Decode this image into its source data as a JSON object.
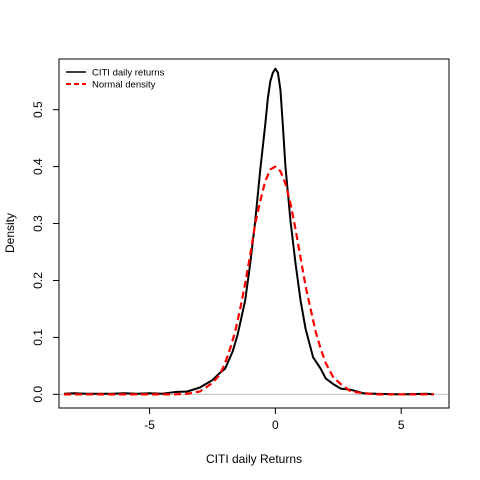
{
  "chart_data": {
    "type": "line",
    "title": "",
    "xlabel": "CITI daily Returns",
    "ylabel": "Density",
    "xlim": [
      -8.6,
      6.9
    ],
    "ylim": [
      -0.024,
      0.589
    ],
    "x_ticks": [
      -5,
      0,
      5
    ],
    "x_tick_labels": [
      "-5",
      "0",
      "5"
    ],
    "y_ticks": [
      0.0,
      0.1,
      0.2,
      0.3,
      0.4,
      0.5
    ],
    "y_tick_labels": [
      "0.0",
      "0.1",
      "0.2",
      "0.3",
      "0.4",
      "0.5"
    ],
    "grid": false,
    "legend_position": "top-left",
    "baseline": {
      "y": 0,
      "color": "#bebebe"
    },
    "series": [
      {
        "name": "CITI daily returns",
        "color": "#000000",
        "dash": "solid",
        "x": [
          -8.4,
          -8.0,
          -7.5,
          -7.0,
          -6.5,
          -6.0,
          -5.5,
          -5.0,
          -4.5,
          -4.0,
          -3.5,
          -3.0,
          -2.5,
          -2.2,
          -2.0,
          -1.7,
          -1.5,
          -1.2,
          -1.0,
          -0.8,
          -0.6,
          -0.4,
          -0.3,
          -0.2,
          -0.1,
          0.0,
          0.1,
          0.2,
          0.3,
          0.4,
          0.6,
          0.8,
          1.0,
          1.2,
          1.5,
          1.8,
          2.0,
          2.3,
          2.6,
          3.0,
          3.5,
          4.0,
          5.0,
          6.0,
          6.3
        ],
        "y": [
          0.001,
          0.002,
          0.001,
          0.001,
          0.001,
          0.002,
          0.001,
          0.002,
          0.001,
          0.004,
          0.005,
          0.012,
          0.025,
          0.038,
          0.045,
          0.075,
          0.105,
          0.165,
          0.23,
          0.305,
          0.395,
          0.475,
          0.52,
          0.55,
          0.565,
          0.572,
          0.565,
          0.535,
          0.47,
          0.4,
          0.305,
          0.23,
          0.165,
          0.115,
          0.065,
          0.045,
          0.028,
          0.018,
          0.01,
          0.008,
          0.002,
          0.001,
          0.0,
          0.001,
          0.0
        ]
      },
      {
        "name": "Normal density",
        "color": "#ff0000",
        "dash": "dashed",
        "x": [
          -8.4,
          -7.5,
          -6.5,
          -5.5,
          -5.0,
          -4.5,
          -4.0,
          -3.5,
          -3.0,
          -2.5,
          -2.2,
          -2.0,
          -1.8,
          -1.6,
          -1.4,
          -1.2,
          -1.0,
          -0.8,
          -0.6,
          -0.4,
          -0.2,
          0.0,
          0.2,
          0.4,
          0.6,
          0.8,
          1.0,
          1.2,
          1.4,
          1.6,
          1.8,
          2.0,
          2.3,
          2.6,
          3.0,
          3.5,
          4.0,
          5.0,
          6.0,
          6.3
        ],
        "y": [
          0.0,
          0.0,
          0.0,
          0.0,
          0.0,
          0.0,
          0.0,
          0.001,
          0.005,
          0.02,
          0.035,
          0.055,
          0.08,
          0.11,
          0.15,
          0.195,
          0.245,
          0.3,
          0.34,
          0.375,
          0.395,
          0.4,
          0.392,
          0.37,
          0.335,
          0.29,
          0.24,
          0.19,
          0.15,
          0.11,
          0.08,
          0.055,
          0.03,
          0.018,
          0.005,
          0.002,
          0.0,
          0.0,
          0.0,
          0.0
        ]
      }
    ]
  }
}
